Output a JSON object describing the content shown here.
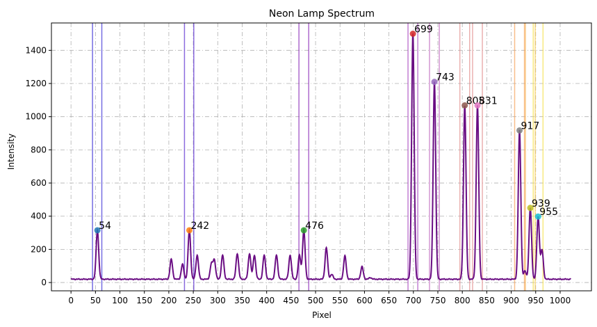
{
  "chart_data": {
    "type": "line",
    "title": "Neon Lamp Spectrum",
    "xlabel": "Pixel",
    "ylabel": "Intensity",
    "xlim": [
      -40,
      1064
    ],
    "ylim": [
      -50,
      1565
    ],
    "xticks": [
      0,
      50,
      100,
      150,
      200,
      250,
      300,
      350,
      400,
      450,
      500,
      550,
      600,
      650,
      700,
      750,
      800,
      850,
      900,
      950,
      1000
    ],
    "yticks": [
      0,
      200,
      400,
      600,
      800,
      1000,
      1200,
      1400
    ],
    "grid": true,
    "line_color": "#6a0d83",
    "baseline": 20,
    "spectrum_range": [
      0,
      1022
    ],
    "minor_peaks": [
      {
        "x": 205,
        "y": 140
      },
      {
        "x": 228,
        "y": 110
      },
      {
        "x": 258,
        "y": 165
      },
      {
        "x": 287,
        "y": 110
      },
      {
        "x": 293,
        "y": 135
      },
      {
        "x": 310,
        "y": 165
      },
      {
        "x": 340,
        "y": 175
      },
      {
        "x": 365,
        "y": 175
      },
      {
        "x": 375,
        "y": 165
      },
      {
        "x": 395,
        "y": 165
      },
      {
        "x": 420,
        "y": 165
      },
      {
        "x": 448,
        "y": 165
      },
      {
        "x": 467,
        "y": 165
      },
      {
        "x": 522,
        "y": 210
      },
      {
        "x": 533,
        "y": 50
      },
      {
        "x": 560,
        "y": 160
      },
      {
        "x": 595,
        "y": 95
      },
      {
        "x": 612,
        "y": 30
      },
      {
        "x": 928,
        "y": 70
      },
      {
        "x": 963,
        "y": 195
      }
    ],
    "peaks": [
      {
        "label": "54",
        "x": 54,
        "y": 315,
        "color": "#1f77b4"
      },
      {
        "label": "242",
        "x": 242,
        "y": 315,
        "color": "#ff7f0e"
      },
      {
        "label": "476",
        "x": 476,
        "y": 315,
        "color": "#2ca02c"
      },
      {
        "label": "699",
        "x": 699,
        "y": 1500,
        "color": "#d62728"
      },
      {
        "label": "743",
        "x": 743,
        "y": 1210,
        "color": "#9467bd"
      },
      {
        "label": "805",
        "x": 805,
        "y": 1068,
        "color": "#8c564b"
      },
      {
        "label": "831",
        "x": 831,
        "y": 1068,
        "color": "#e377c2"
      },
      {
        "label": "917",
        "x": 917,
        "y": 917,
        "color": "#7f7f7f"
      },
      {
        "label": "939",
        "x": 939,
        "y": 450,
        "color": "#bcbd22"
      },
      {
        "label": "955",
        "x": 955,
        "y": 398,
        "color": "#17becf"
      }
    ],
    "vlines": [
      {
        "x": 44,
        "color": "#3a2fd6"
      },
      {
        "x": 63,
        "color": "#3a2fd6"
      },
      {
        "x": 232,
        "color": "#5a2bd0"
      },
      {
        "x": 251,
        "color": "#5a2bd0"
      },
      {
        "x": 466,
        "color": "#8a2bb8"
      },
      {
        "x": 486,
        "color": "#8a2bb8"
      },
      {
        "x": 689,
        "color": "#a84ac0"
      },
      {
        "x": 709,
        "color": "#a84ac0"
      },
      {
        "x": 733,
        "color": "#c06bbf"
      },
      {
        "x": 753,
        "color": "#c06bbf"
      },
      {
        "x": 795,
        "color": "#e3908f"
      },
      {
        "x": 815,
        "color": "#e3908f"
      },
      {
        "x": 821,
        "color": "#e3908f"
      },
      {
        "x": 841,
        "color": "#e3908f"
      },
      {
        "x": 907,
        "color": "#f5a35a"
      },
      {
        "x": 927,
        "color": "#f5a35a"
      },
      {
        "x": 929,
        "color": "#f7b65a"
      },
      {
        "x": 949,
        "color": "#f7c84a"
      },
      {
        "x": 945,
        "color": "#f7e04a"
      },
      {
        "x": 965,
        "color": "#f7e04a"
      }
    ]
  }
}
